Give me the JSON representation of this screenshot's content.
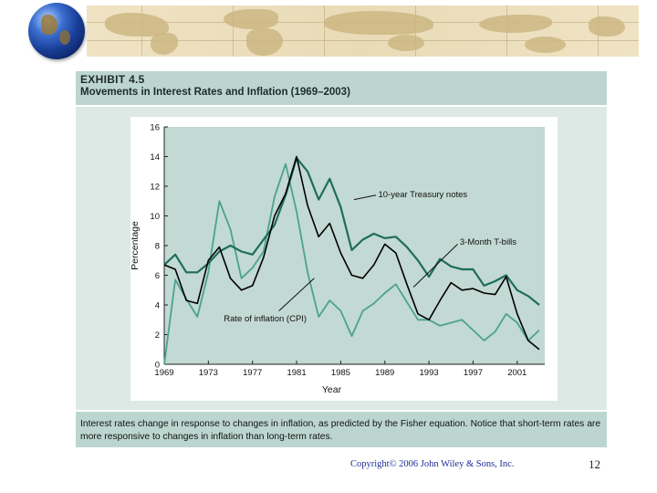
{
  "exhibit": {
    "number": "EXHIBIT 4.5",
    "title": "Movements in Interest Rates and Inflation (1969–2003)",
    "caption": "Interest rates change in response to changes in inflation, as predicted by the Fisher equation. Notice that short-term rates are more responsive to changes in inflation than long-term rates."
  },
  "footer": {
    "copyright": "Copyright© 2006 John Wiley & Sons, Inc.",
    "page": "12"
  },
  "colors": {
    "treasury": "#1d6e5a",
    "tbills": "#000000",
    "cpi": "#4aa38e",
    "plot_bg": "#c3d9d3",
    "panel_bg": "#ffffff",
    "map": "#e9dbb6"
  },
  "chart_data": {
    "type": "line",
    "xlabel": "Year",
    "ylabel": "Percentage",
    "xlim": [
      1969,
      2003.5
    ],
    "ylim": [
      0,
      16
    ],
    "xticks": [
      "1969",
      "1973",
      "1977",
      "1981",
      "1985",
      "1989",
      "1993",
      "1997",
      "2001"
    ],
    "yticks": [
      "0",
      "2",
      "4",
      "6",
      "8",
      "10",
      "12",
      "14",
      "16"
    ],
    "x": [
      1969,
      1970,
      1971,
      1972,
      1973,
      1974,
      1975,
      1976,
      1977,
      1978,
      1979,
      1980,
      1981,
      1982,
      1983,
      1984,
      1985,
      1986,
      1987,
      1988,
      1989,
      1990,
      1991,
      1992,
      1993,
      1994,
      1995,
      1996,
      1997,
      1998,
      1999,
      2000,
      2001,
      2002,
      2003
    ],
    "series": [
      {
        "name": "10-year Treasury notes",
        "label": "10-year Treasury notes",
        "values": [
          6.7,
          7.4,
          6.2,
          6.2,
          6.8,
          7.6,
          8.0,
          7.6,
          7.4,
          8.4,
          9.4,
          11.4,
          13.9,
          13.0,
          11.1,
          12.5,
          10.6,
          7.7,
          8.4,
          8.8,
          8.5,
          8.6,
          7.9,
          7.0,
          5.9,
          7.1,
          6.6,
          6.4,
          6.4,
          5.3,
          5.6,
          6.0,
          5.0,
          4.6,
          4.0
        ]
      },
      {
        "name": "3-Month T-bills",
        "label": "3-Month T-bills",
        "values": [
          6.7,
          6.4,
          4.3,
          4.1,
          7.0,
          7.9,
          5.8,
          5.0,
          5.3,
          7.2,
          10.0,
          11.5,
          14.0,
          10.7,
          8.6,
          9.5,
          7.5,
          6.0,
          5.8,
          6.7,
          8.1,
          7.5,
          5.4,
          3.4,
          3.0,
          4.3,
          5.5,
          5.0,
          5.1,
          4.8,
          4.7,
          5.9,
          3.4,
          1.6,
          1.0
        ]
      },
      {
        "name": "Rate of inflation (CPI)",
        "label": "Rate of inflation (CPI)",
        "values": [
          0.0,
          5.7,
          4.4,
          3.2,
          6.2,
          11.0,
          9.1,
          5.8,
          6.5,
          7.6,
          11.3,
          13.5,
          10.3,
          6.2,
          3.2,
          4.3,
          3.6,
          1.9,
          3.6,
          4.1,
          4.8,
          5.4,
          4.2,
          3.0,
          3.0,
          2.6,
          2.8,
          3.0,
          2.3,
          1.6,
          2.2,
          3.4,
          2.8,
          1.6,
          2.3
        ]
      }
    ]
  }
}
